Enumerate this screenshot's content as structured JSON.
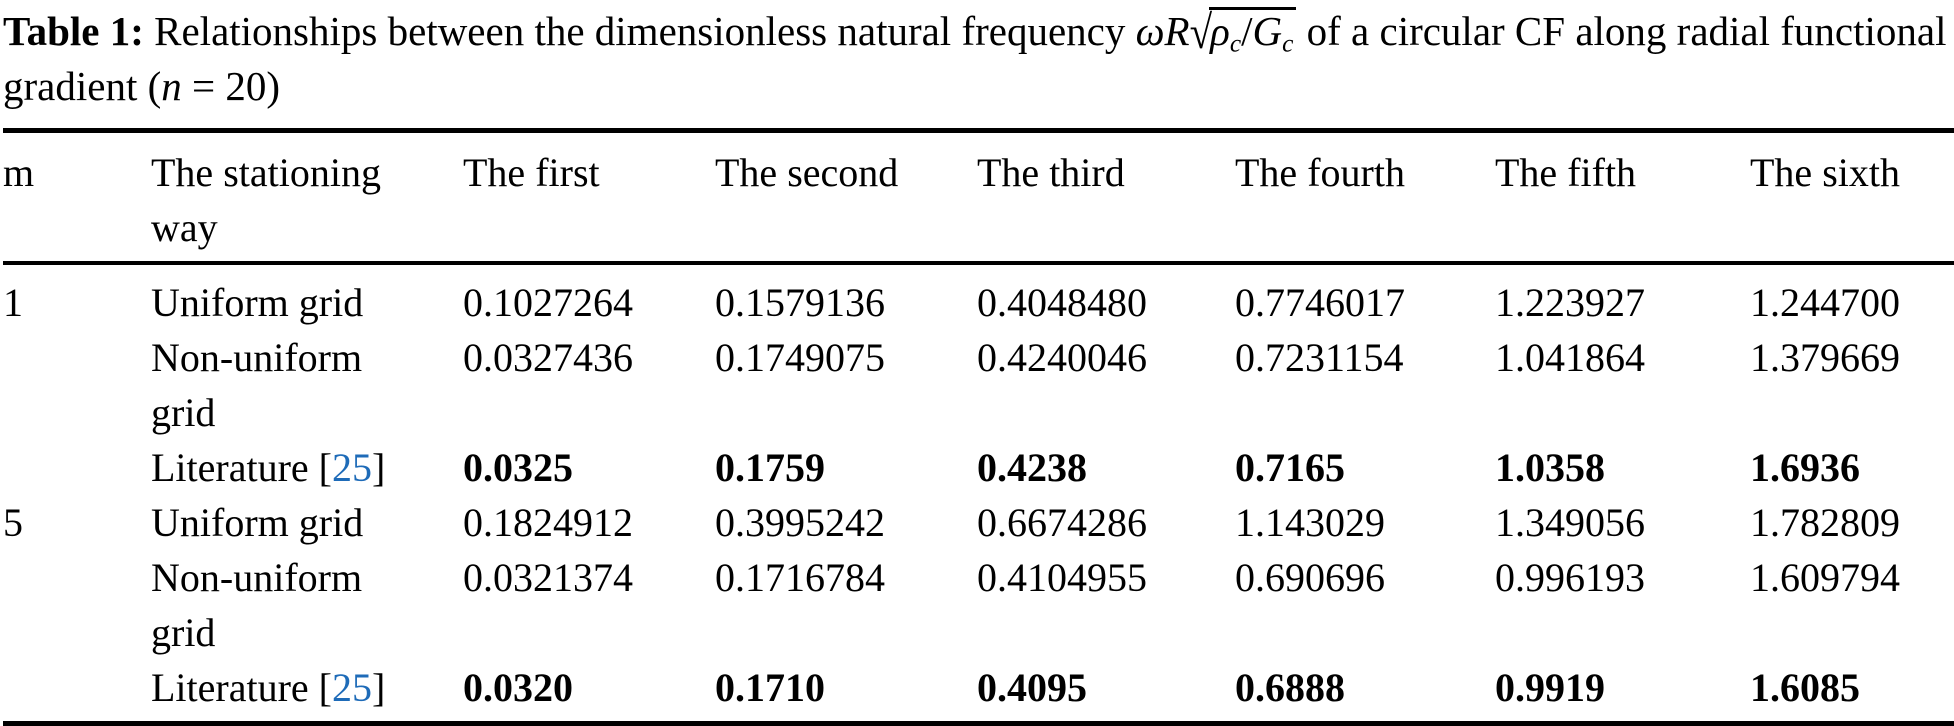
{
  "colors": {
    "text": "#000000",
    "background": "#ffffff",
    "citation_link": "#1e6bb8",
    "rule": "#000000"
  },
  "caption": {
    "label": "Table 1:",
    "part1": " Relationships between the dimensionless natural frequency ",
    "formula_omega_r": "ωR",
    "radical_sign": "√",
    "formula_rho": "ρ",
    "formula_rho_sub": "c",
    "formula_slash": "/",
    "formula_g": "G",
    "formula_g_sub": "c",
    "part2": " of a circular CF along radial functional gradient (",
    "formula_n": "n",
    "part3": " = 20)"
  },
  "table": {
    "headers": {
      "m": "m",
      "way": "The stationing way",
      "first": "The first",
      "second": "The second",
      "third": "The third",
      "fourth": "The fourth",
      "fifth": "The fifth",
      "sixth": "The sixth"
    },
    "rows": [
      {
        "m": "1",
        "way": "Uniform grid",
        "values": [
          "0.1027264",
          "0.1579136",
          "0.4048480",
          "0.7746017",
          "1.223927",
          "1.244700"
        ]
      },
      {
        "m": "",
        "way": "Non-uniform grid",
        "values": [
          "0.0327436",
          "0.1749075",
          "0.4240046",
          "0.7231154",
          "1.041864",
          "1.379669"
        ]
      },
      {
        "m": "",
        "way_prefix": "Literature [",
        "way_link": "25",
        "way_suffix": "]",
        "values": [
          "0.0325",
          "0.1759",
          "0.4238",
          "0.7165",
          "1.0358",
          "1.6936"
        ]
      },
      {
        "m": "5",
        "way": "Uniform grid",
        "values": [
          "0.1824912",
          "0.3995242",
          "0.6674286",
          "1.143029",
          "1.349056",
          "1.782809"
        ]
      },
      {
        "m": "",
        "way": "Non-uniform grid",
        "values": [
          "0.0321374",
          "0.1716784",
          "0.4104955",
          "0.690696",
          "0.996193",
          "1.609794"
        ]
      },
      {
        "m": "",
        "way_prefix": "Literature [",
        "way_link": "25",
        "way_suffix": "]",
        "values": [
          "0.0320",
          "0.1710",
          "0.4095",
          "0.6888",
          "0.9919",
          "1.6085"
        ]
      }
    ]
  }
}
